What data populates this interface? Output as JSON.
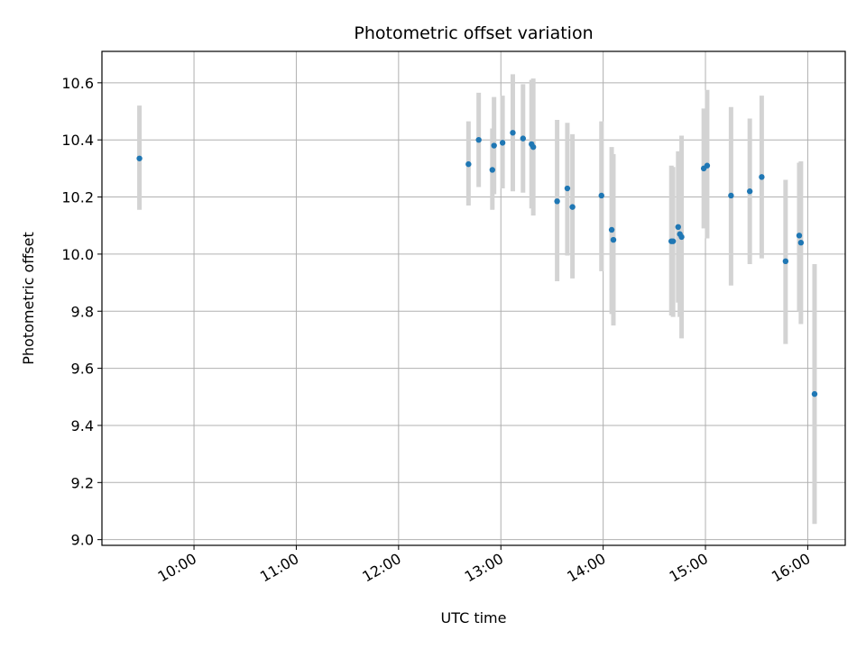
{
  "chart_data": {
    "type": "scatter",
    "title": "Photometric offset variation",
    "xlabel": "UTC time",
    "ylabel": "Photometric offset",
    "x_unit": "UTC time (HH:MM)",
    "xlim": [
      "09:06",
      "16:22"
    ],
    "ylim": [
      8.98,
      10.71
    ],
    "x_ticks": [
      "10:00",
      "11:00",
      "12:00",
      "13:00",
      "14:00",
      "15:00",
      "16:00"
    ],
    "y_ticks": [
      "9.0",
      "9.2",
      "9.4",
      "9.6",
      "9.8",
      "10.0",
      "10.2",
      "10.4",
      "10.6"
    ],
    "grid": true,
    "marker_color": "#1f77b4",
    "errorbar_color": "#d3d3d3",
    "points": [
      {
        "x": "09:28",
        "y": 10.335,
        "lo": 10.155,
        "hi": 10.52
      },
      {
        "x": "12:41",
        "y": 10.315,
        "lo": 10.17,
        "hi": 10.465
      },
      {
        "x": "12:47",
        "y": 10.4,
        "lo": 10.235,
        "hi": 10.565
      },
      {
        "x": "12:55",
        "y": 10.295,
        "lo": 10.155,
        "hi": 10.44
      },
      {
        "x": "12:56",
        "y": 10.38,
        "lo": 10.21,
        "hi": 10.55
      },
      {
        "x": "13:01",
        "y": 10.39,
        "lo": 10.23,
        "hi": 10.555
      },
      {
        "x": "13:07",
        "y": 10.425,
        "lo": 10.22,
        "hi": 10.63
      },
      {
        "x": "13:13",
        "y": 10.405,
        "lo": 10.215,
        "hi": 10.595
      },
      {
        "x": "13:18",
        "y": 10.385,
        "lo": 10.16,
        "hi": 10.61
      },
      {
        "x": "13:19",
        "y": 10.375,
        "lo": 10.135,
        "hi": 10.615
      },
      {
        "x": "13:33",
        "y": 10.185,
        "lo": 9.905,
        "hi": 10.47
      },
      {
        "x": "13:39",
        "y": 10.23,
        "lo": 9.995,
        "hi": 10.46
      },
      {
        "x": "13:42",
        "y": 10.165,
        "lo": 9.915,
        "hi": 10.42
      },
      {
        "x": "13:59",
        "y": 10.205,
        "lo": 9.94,
        "hi": 10.465
      },
      {
        "x": "14:05",
        "y": 10.085,
        "lo": 9.79,
        "hi": 10.375
      },
      {
        "x": "14:06",
        "y": 10.05,
        "lo": 9.75,
        "hi": 10.35
      },
      {
        "x": "14:40",
        "y": 10.045,
        "lo": 9.785,
        "hi": 10.31
      },
      {
        "x": "14:41",
        "y": 10.045,
        "lo": 9.78,
        "hi": 10.305
      },
      {
        "x": "14:44",
        "y": 10.095,
        "lo": 9.83,
        "hi": 10.36
      },
      {
        "x": "14:45",
        "y": 10.07,
        "lo": 9.78,
        "hi": 10.36
      },
      {
        "x": "14:46",
        "y": 10.06,
        "lo": 9.705,
        "hi": 10.415
      },
      {
        "x": "14:59",
        "y": 10.3,
        "lo": 10.09,
        "hi": 10.51
      },
      {
        "x": "15:01",
        "y": 10.31,
        "lo": 10.055,
        "hi": 10.575
      },
      {
        "x": "15:15",
        "y": 10.205,
        "lo": 9.89,
        "hi": 10.515
      },
      {
        "x": "15:26",
        "y": 10.22,
        "lo": 9.965,
        "hi": 10.475
      },
      {
        "x": "15:33",
        "y": 10.27,
        "lo": 9.985,
        "hi": 10.555
      },
      {
        "x": "15:47",
        "y": 9.975,
        "lo": 9.685,
        "hi": 10.26
      },
      {
        "x": "15:55",
        "y": 10.065,
        "lo": 9.8,
        "hi": 10.32
      },
      {
        "x": "15:56",
        "y": 10.04,
        "lo": 9.755,
        "hi": 10.325
      },
      {
        "x": "16:04",
        "y": 9.51,
        "lo": 9.055,
        "hi": 9.965
      }
    ]
  }
}
